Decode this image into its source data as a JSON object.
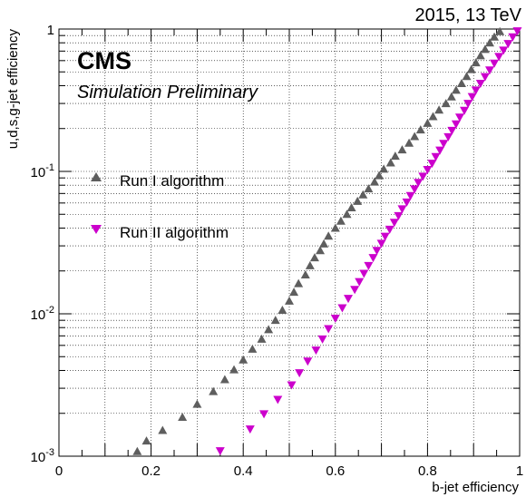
{
  "header": {
    "energy_label": "2015, 13 TeV",
    "experiment": "CMS",
    "status": "Simulation Preliminary"
  },
  "chart_data": {
    "type": "scatter",
    "xlabel": "b-jet efficiency",
    "ylabel": "u,d,s,g-jet efficiency",
    "xlim": [
      0,
      1
    ],
    "ylim": [
      0.001,
      1
    ],
    "yscale": "log",
    "grid": true,
    "legend_position": "upper-left",
    "x_ticks": [
      "0",
      "0.2",
      "0.4",
      "0.6",
      "0.8",
      "1"
    ],
    "y_ticks": [
      {
        "base": "10",
        "exp": "-3"
      },
      {
        "base": "10",
        "exp": "-2"
      },
      {
        "base": "10",
        "exp": "-1"
      },
      {
        "base": "1",
        "exp": ""
      }
    ],
    "series": [
      {
        "name": "Run I algorithm",
        "color": "#5e5e5e",
        "marker": "triangle-up",
        "points": [
          [
            0.17,
            0.00108
          ],
          [
            0.19,
            0.00128
          ],
          [
            0.225,
            0.00152
          ],
          [
            0.268,
            0.00188
          ],
          [
            0.3,
            0.00232
          ],
          [
            0.335,
            0.00285
          ],
          [
            0.36,
            0.00345
          ],
          [
            0.38,
            0.00405
          ],
          [
            0.4,
            0.00475
          ],
          [
            0.42,
            0.00565
          ],
          [
            0.44,
            0.00665
          ],
          [
            0.455,
            0.00775
          ],
          [
            0.47,
            0.009
          ],
          [
            0.485,
            0.0106
          ],
          [
            0.5,
            0.0123
          ],
          [
            0.51,
            0.0142
          ],
          [
            0.52,
            0.0163
          ],
          [
            0.535,
            0.0188
          ],
          [
            0.545,
            0.0218
          ],
          [
            0.555,
            0.0248
          ],
          [
            0.567,
            0.0278
          ],
          [
            0.575,
            0.031
          ],
          [
            0.585,
            0.0352
          ],
          [
            0.6,
            0.04
          ],
          [
            0.612,
            0.0448
          ],
          [
            0.625,
            0.05
          ],
          [
            0.635,
            0.0556
          ],
          [
            0.648,
            0.0617
          ],
          [
            0.66,
            0.0685
          ],
          [
            0.672,
            0.0755
          ],
          [
            0.685,
            0.0843
          ],
          [
            0.695,
            0.0935
          ],
          [
            0.705,
            0.104
          ],
          [
            0.72,
            0.115
          ],
          [
            0.73,
            0.128
          ],
          [
            0.745,
            0.142
          ],
          [
            0.76,
            0.158
          ],
          [
            0.772,
            0.176
          ],
          [
            0.785,
            0.196
          ],
          [
            0.8,
            0.218
          ],
          [
            0.812,
            0.243
          ],
          [
            0.825,
            0.27
          ],
          [
            0.84,
            0.3
          ],
          [
            0.852,
            0.334
          ],
          [
            0.862,
            0.372
          ],
          [
            0.874,
            0.415
          ],
          [
            0.885,
            0.465
          ],
          [
            0.895,
            0.52
          ],
          [
            0.905,
            0.58
          ],
          [
            0.915,
            0.65
          ],
          [
            0.925,
            0.72
          ],
          [
            0.935,
            0.8
          ],
          [
            0.945,
            0.88
          ],
          [
            0.957,
            0.96
          ]
        ]
      },
      {
        "name": "Run II algorithm",
        "color": "#cc00cc",
        "marker": "triangle-down",
        "points": [
          [
            0.35,
            0.00109
          ],
          [
            0.415,
            0.00155
          ],
          [
            0.445,
            0.00198
          ],
          [
            0.475,
            0.0025
          ],
          [
            0.505,
            0.00316
          ],
          [
            0.522,
            0.00385
          ],
          [
            0.54,
            0.00465
          ],
          [
            0.558,
            0.00555
          ],
          [
            0.572,
            0.00665
          ],
          [
            0.585,
            0.00785
          ],
          [
            0.6,
            0.0093
          ],
          [
            0.615,
            0.011
          ],
          [
            0.628,
            0.0128
          ],
          [
            0.642,
            0.0148
          ],
          [
            0.652,
            0.0168
          ],
          [
            0.662,
            0.0192
          ],
          [
            0.672,
            0.0218
          ],
          [
            0.682,
            0.0248
          ],
          [
            0.69,
            0.0278
          ],
          [
            0.7,
            0.0312
          ],
          [
            0.708,
            0.035
          ],
          [
            0.718,
            0.0392
          ],
          [
            0.728,
            0.0438
          ],
          [
            0.737,
            0.0488
          ],
          [
            0.745,
            0.0545
          ],
          [
            0.755,
            0.0608
          ],
          [
            0.763,
            0.0675
          ],
          [
            0.772,
            0.0752
          ],
          [
            0.78,
            0.0835
          ],
          [
            0.79,
            0.0925
          ],
          [
            0.8,
            0.103
          ],
          [
            0.81,
            0.114
          ],
          [
            0.818,
            0.127
          ],
          [
            0.827,
            0.141
          ],
          [
            0.835,
            0.157
          ],
          [
            0.845,
            0.175
          ],
          [
            0.853,
            0.194
          ],
          [
            0.862,
            0.215
          ],
          [
            0.87,
            0.24
          ],
          [
            0.88,
            0.268
          ],
          [
            0.888,
            0.3
          ],
          [
            0.897,
            0.335
          ],
          [
            0.905,
            0.372
          ],
          [
            0.915,
            0.415
          ],
          [
            0.925,
            0.462
          ],
          [
            0.935,
            0.515
          ],
          [
            0.945,
            0.575
          ],
          [
            0.955,
            0.64
          ],
          [
            0.965,
            0.71
          ],
          [
            0.975,
            0.79
          ],
          [
            0.985,
            0.88
          ],
          [
            0.995,
            0.97
          ]
        ]
      }
    ]
  }
}
